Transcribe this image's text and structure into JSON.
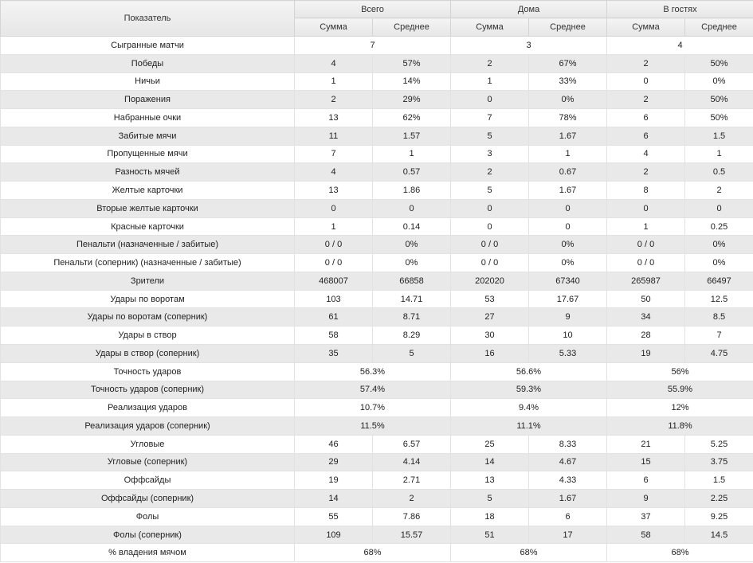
{
  "header": {
    "name_label": "Показатель",
    "groups": [
      "Всего",
      "Дома",
      "В гостях"
    ],
    "sub": {
      "sum": "Сумма",
      "avg": "Среднее"
    }
  },
  "rows": [
    {
      "name": "Сыгранные матчи",
      "merged": [
        "7",
        "3",
        "4"
      ]
    },
    {
      "name": "Победы",
      "cells": [
        "4",
        "57%",
        "2",
        "67%",
        "2",
        "50%"
      ]
    },
    {
      "name": "Ничьи",
      "cells": [
        "1",
        "14%",
        "1",
        "33%",
        "0",
        "0%"
      ]
    },
    {
      "name": "Поражения",
      "cells": [
        "2",
        "29%",
        "0",
        "0%",
        "2",
        "50%"
      ]
    },
    {
      "name": "Набранные очки",
      "cells": [
        "13",
        "62%",
        "7",
        "78%",
        "6",
        "50%"
      ]
    },
    {
      "name": "Забитые мячи",
      "cells": [
        "11",
        "1.57",
        "5",
        "1.67",
        "6",
        "1.5"
      ]
    },
    {
      "name": "Пропущенные мячи",
      "cells": [
        "7",
        "1",
        "3",
        "1",
        "4",
        "1"
      ]
    },
    {
      "name": "Разность мячей",
      "cells": [
        "4",
        "0.57",
        "2",
        "0.67",
        "2",
        "0.5"
      ]
    },
    {
      "name": "Желтые карточки",
      "cells": [
        "13",
        "1.86",
        "5",
        "1.67",
        "8",
        "2"
      ]
    },
    {
      "name": "Вторые желтые карточки",
      "cells": [
        "0",
        "0",
        "0",
        "0",
        "0",
        "0"
      ]
    },
    {
      "name": "Красные карточки",
      "cells": [
        "1",
        "0.14",
        "0",
        "0",
        "1",
        "0.25"
      ]
    },
    {
      "name": "Пенальти (назначенные / забитые)",
      "cells": [
        "0 / 0",
        "0%",
        "0 / 0",
        "0%",
        "0 / 0",
        "0%"
      ]
    },
    {
      "name": "Пенальти (соперник) (назначенные / забитые)",
      "cells": [
        "0 / 0",
        "0%",
        "0 / 0",
        "0%",
        "0 / 0",
        "0%"
      ]
    },
    {
      "name": "Зрители",
      "cells": [
        "468007",
        "66858",
        "202020",
        "67340",
        "265987",
        "66497"
      ]
    },
    {
      "name": "Удары по воротам",
      "cells": [
        "103",
        "14.71",
        "53",
        "17.67",
        "50",
        "12.5"
      ]
    },
    {
      "name": "Удары по воротам (соперник)",
      "cells": [
        "61",
        "8.71",
        "27",
        "9",
        "34",
        "8.5"
      ]
    },
    {
      "name": "Удары в створ",
      "cells": [
        "58",
        "8.29",
        "30",
        "10",
        "28",
        "7"
      ]
    },
    {
      "name": "Удары в створ (соперник)",
      "cells": [
        "35",
        "5",
        "16",
        "5.33",
        "19",
        "4.75"
      ]
    },
    {
      "name": "Точность ударов",
      "merged": [
        "56.3%",
        "56.6%",
        "56%"
      ]
    },
    {
      "name": "Точность ударов (соперник)",
      "merged": [
        "57.4%",
        "59.3%",
        "55.9%"
      ]
    },
    {
      "name": "Реализация ударов",
      "merged": [
        "10.7%",
        "9.4%",
        "12%"
      ]
    },
    {
      "name": "Реализация ударов (соперник)",
      "merged": [
        "11.5%",
        "11.1%",
        "11.8%"
      ]
    },
    {
      "name": "Угловые",
      "cells": [
        "46",
        "6.57",
        "25",
        "8.33",
        "21",
        "5.25"
      ]
    },
    {
      "name": "Угловые (соперник)",
      "cells": [
        "29",
        "4.14",
        "14",
        "4.67",
        "15",
        "3.75"
      ]
    },
    {
      "name": "Оффсайды",
      "cells": [
        "19",
        "2.71",
        "13",
        "4.33",
        "6",
        "1.5"
      ]
    },
    {
      "name": "Оффсайды (соперник)",
      "cells": [
        "14",
        "2",
        "5",
        "1.67",
        "9",
        "2.25"
      ]
    },
    {
      "name": "Фолы",
      "cells": [
        "55",
        "7.86",
        "18",
        "6",
        "37",
        "9.25"
      ]
    },
    {
      "name": "Фолы (соперник)",
      "cells": [
        "109",
        "15.57",
        "51",
        "17",
        "58",
        "14.5"
      ]
    },
    {
      "name": "% владения мячом",
      "merged": [
        "68%",
        "68%",
        "68%"
      ]
    }
  ]
}
